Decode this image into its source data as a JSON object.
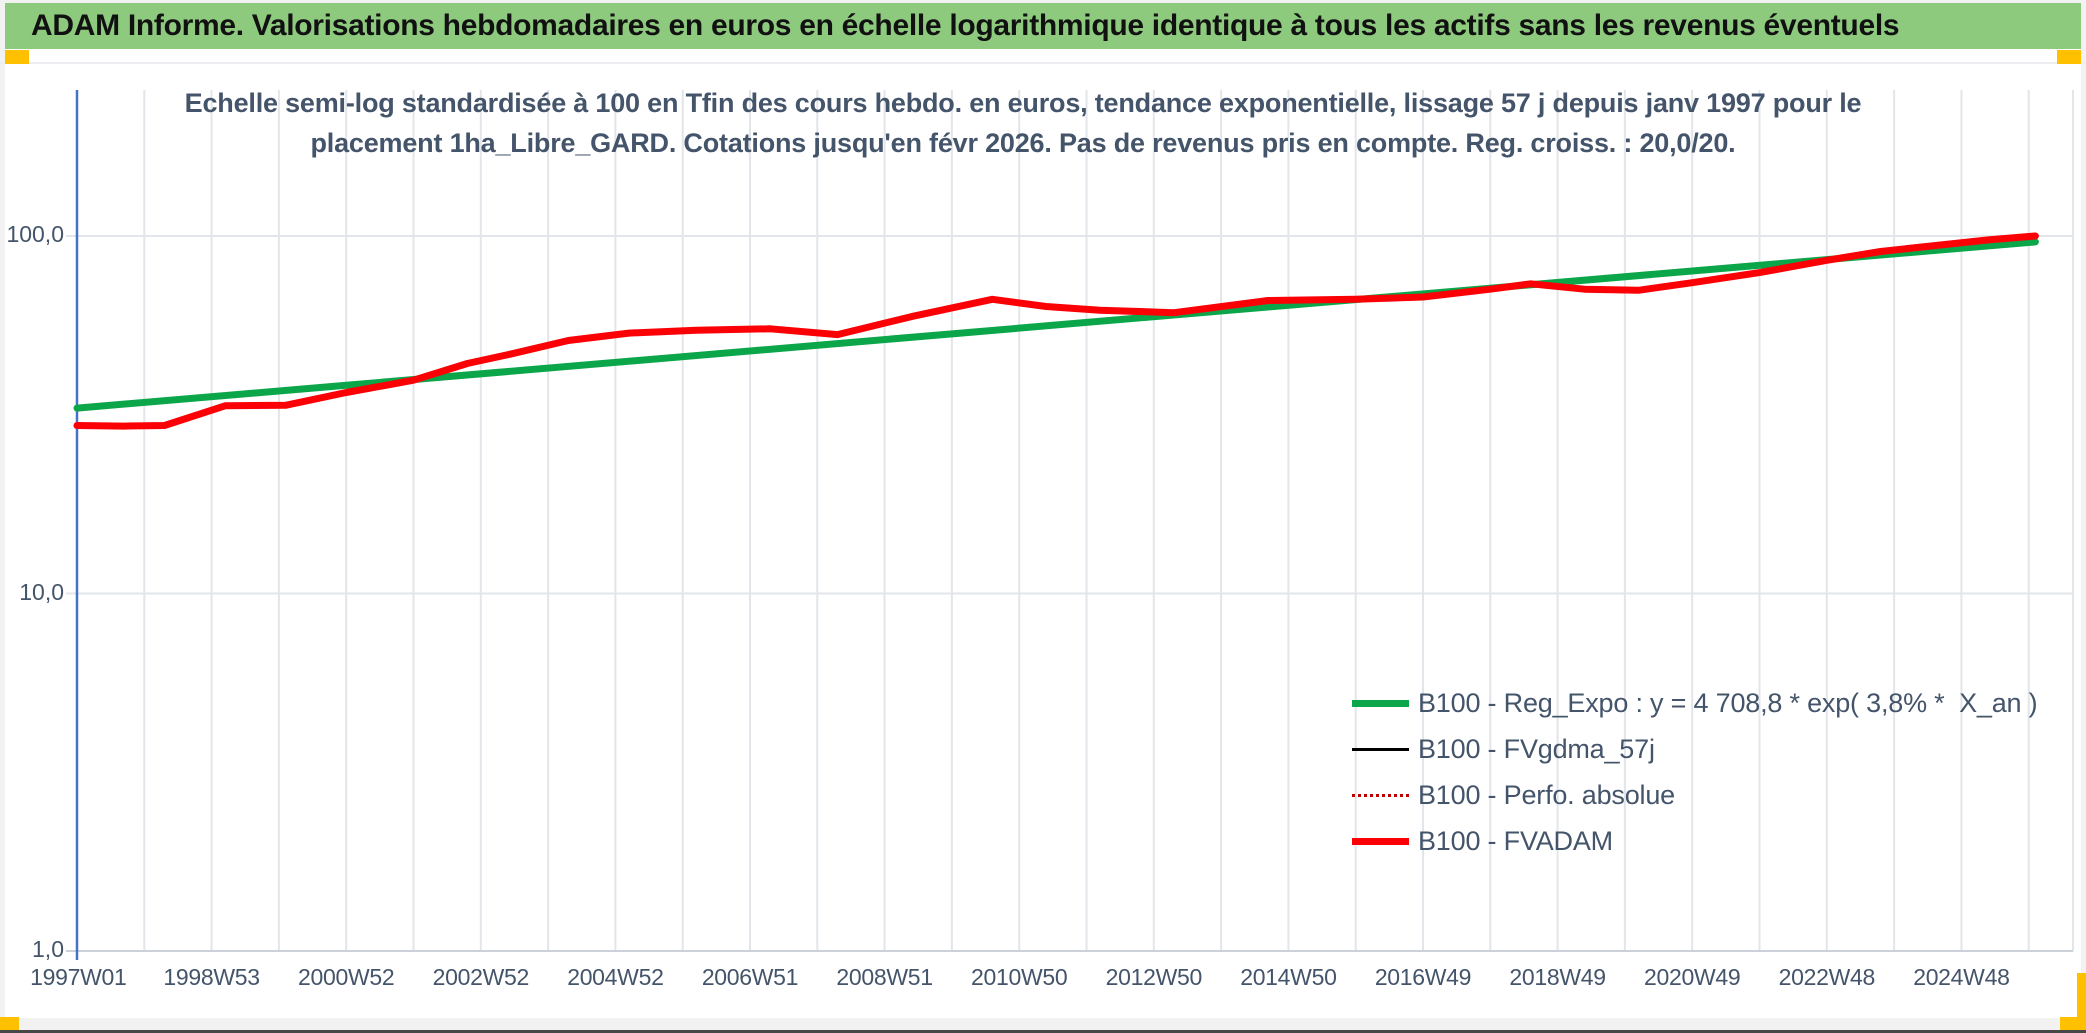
{
  "header": {
    "title": "ADAM Informe. Valorisations hebdomadaires en euros en échelle logarithmique identique à tous les actifs sans les revenus éventuels",
    "bg_color": "#8dca7e",
    "accent_color": "#ffc000"
  },
  "subtitle": {
    "line1": "Echelle semi-log standardisée à 100 en Tfin des cours hebdo. en euros, tendance exponentielle, lissage 57 j depuis janv 1997 pour le",
    "line2": "placement 1ha_Libre_GARD. Cotations jusqu'en févr 2026. Pas de revenus pris en compte. Reg. croiss. : 20,0/20.",
    "text_color": "#44546a"
  },
  "chart_data": {
    "type": "line",
    "y_scale": "log10",
    "ylim": [
      1,
      250
    ],
    "xlim_years": [
      1997.0,
      2026.6
    ],
    "grid": "on",
    "legend_position": "inside-right",
    "axis_color": "#4472c4",
    "gridline_color": "#e2e5ea",
    "y_tick_labels": [
      {
        "text": "100,0",
        "value": 100
      },
      {
        "text": "10,0",
        "value": 10
      },
      {
        "text": "1,0",
        "value": 1
      }
    ],
    "x_tick_labels": [
      {
        "text": "1997W01",
        "year": 1997.02
      },
      {
        "text": "1998W53",
        "year": 1999.0
      },
      {
        "text": "2000W52",
        "year": 2001.0
      },
      {
        "text": "2002W52",
        "year": 2003.0
      },
      {
        "text": "2004W52",
        "year": 2005.0
      },
      {
        "text": "2006W51",
        "year": 2007.0
      },
      {
        "text": "2008W51",
        "year": 2009.0
      },
      {
        "text": "2010W50",
        "year": 2011.0
      },
      {
        "text": "2012W50",
        "year": 2013.0
      },
      {
        "text": "2014W50",
        "year": 2015.0
      },
      {
        "text": "2016W49",
        "year": 2017.0
      },
      {
        "text": "2018W49",
        "year": 2019.0
      },
      {
        "text": "2020W49",
        "year": 2021.0
      },
      {
        "text": "2022W48",
        "year": 2023.0
      },
      {
        "text": "2024W48",
        "year": 2025.0
      }
    ],
    "series": [
      {
        "name": "B100 - Reg_Expo : y = 4 708,8 * exp( 3,8% *  X_an )",
        "color": "#0ca64a",
        "width": 7,
        "dash": "solid",
        "x": [
          1997.0,
          2026.1
        ],
        "values": [
          33.0,
          96.3
        ]
      },
      {
        "name": "B100 - FVgdma_57j",
        "color": "#000000",
        "width": 3,
        "dash": "solid",
        "same_as": "B100 - FVADAM"
      },
      {
        "name": "B100 - Perfo. absolue",
        "color": "#c00000",
        "width": 2.5,
        "dash": "dotted",
        "same_as": "B100 - FVADAM"
      },
      {
        "name": "B100 - FVADAM",
        "color": "#fb0005",
        "width": 7,
        "dash": "solid",
        "x": [
          1997.0,
          1997.7,
          1998.3,
          1999.2,
          2000.1,
          2001.0,
          2002.0,
          2002.8,
          2003.5,
          2004.3,
          2005.2,
          2006.2,
          2007.3,
          2008.3,
          2009.4,
          2010.6,
          2011.4,
          2012.2,
          2013.3,
          2014.7,
          2016.0,
          2017.0,
          2018.0,
          2018.6,
          2019.4,
          2020.2,
          2021.0,
          2022.0,
          2023.0,
          2023.8,
          2024.6,
          2025.4,
          2026.1
        ],
        "values": [
          29.5,
          29.4,
          29.5,
          33.5,
          33.6,
          36.5,
          39.5,
          44.0,
          47.0,
          51.0,
          53.5,
          54.5,
          55.0,
          53.0,
          59.5,
          66.5,
          63.5,
          62.0,
          61.0,
          66.0,
          66.5,
          67.5,
          71.0,
          73.5,
          71.0,
          70.5,
          74.0,
          79.0,
          85.5,
          90.5,
          94.0,
          97.5,
          100.0
        ]
      }
    ]
  }
}
